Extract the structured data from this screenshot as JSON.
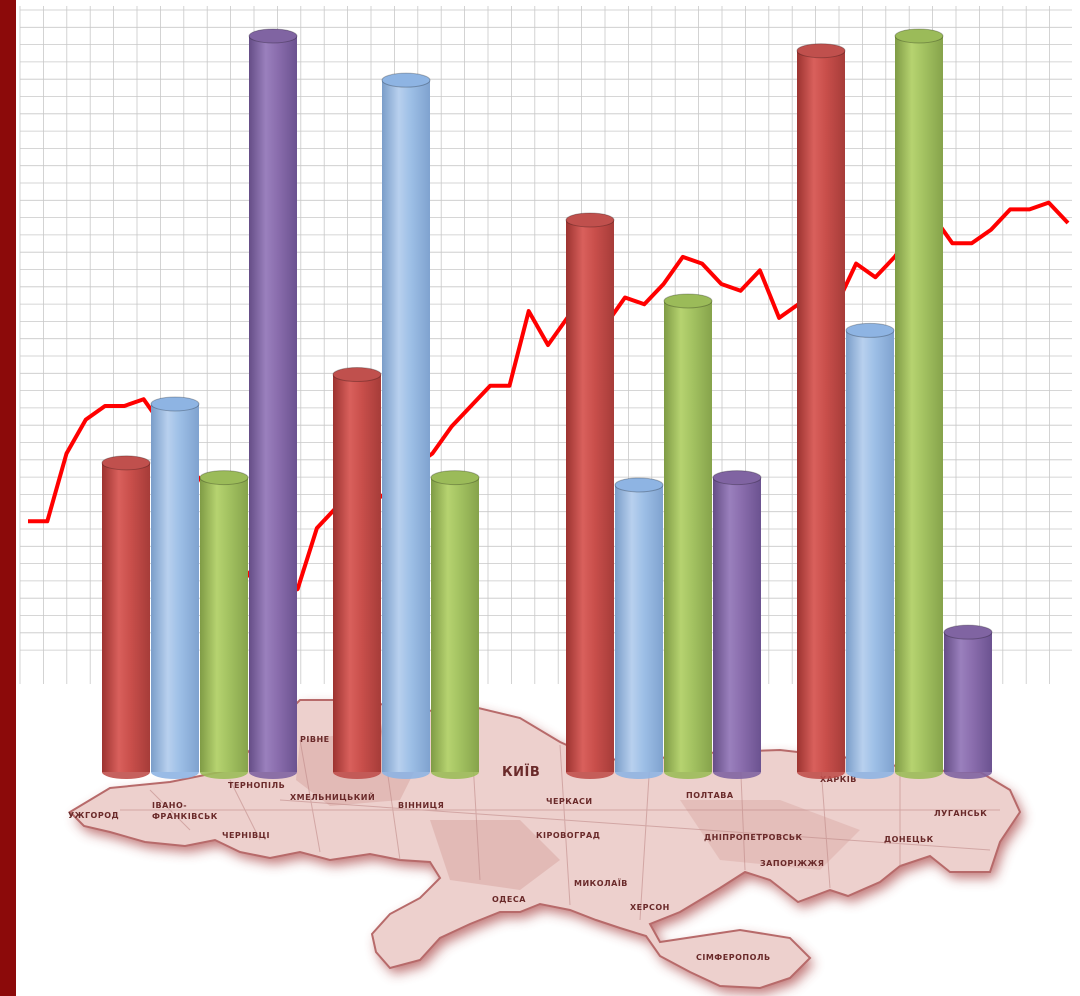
{
  "colors": {
    "left_band": "#8c0a0a",
    "grid": "#c8c8c8",
    "trend_line": "#ff0000",
    "map_fill": "#edd0cd",
    "map_shadow": "#a63c3c",
    "map_border": "#b76a6a",
    "map_region_dark": "#d9a8a4"
  },
  "map": {
    "cities": [
      "УЖГОРОД",
      "ІВАНО-",
      "ФРАНКІВСЬК",
      "ЧЕРНІВЦІ",
      "ТЕРНОПІЛЬ",
      "РІВНЕ",
      "ХМЕЛЬНИЦЬКИЙ",
      "ВІННИЦЯ",
      "КИЇВ",
      "ЧЕРКАСИ",
      "ПОЛТАВА",
      "КІРОВОГРАД",
      "ДНІПРОПЕТРОВСЬК",
      "ХАРКІВ",
      "ЛУГАНСЬК",
      "ДОНЕЦЬК",
      "ЗАПОРІЖЖЯ",
      "МИКОЛАЇВ",
      "ОДЕСА",
      "ХЕРСОН",
      "СІМФЕРОПОЛЬ"
    ]
  },
  "chart_data": [
    {
      "type": "bar",
      "style": "3d-cylinder",
      "groups": 4,
      "grid": true,
      "legend": "none",
      "ylim": [
        0,
        100
      ],
      "series": [
        {
          "color": "#c0504d",
          "values": [
            42,
            54,
            75,
            98
          ]
        },
        {
          "color": "#8eb4e3",
          "values": [
            50,
            94,
            39,
            60
          ]
        },
        {
          "color": "#9bbb59",
          "values": [
            40,
            40,
            64,
            100
          ]
        },
        {
          "color": "#8064a2",
          "values": [
            100,
            null,
            40,
            19
          ]
        }
      ]
    },
    {
      "type": "line",
      "color": "#ff0000",
      "grid": true,
      "ylim": [
        0,
        100
      ],
      "y": [
        24,
        24,
        34,
        39,
        41,
        41,
        42,
        38,
        33,
        30,
        22,
        18,
        14,
        13,
        14,
        23,
        26,
        27,
        27,
        29,
        32,
        34,
        38,
        41,
        44,
        44,
        55,
        50,
        54,
        56,
        53,
        57,
        56,
        59,
        63,
        62,
        59,
        58,
        61,
        54,
        56,
        56,
        56,
        62,
        60,
        63,
        67,
        69,
        65,
        65,
        67,
        70,
        70,
        71,
        68
      ]
    }
  ]
}
